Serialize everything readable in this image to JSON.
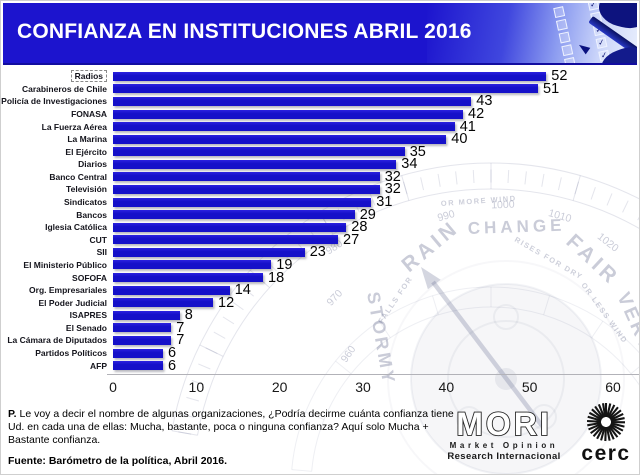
{
  "header": {
    "title": "CONFIANZA EN INSTITUCIONES ABRIL 2016",
    "image": "survey-checklist-with-pen"
  },
  "chart_data": {
    "type": "bar",
    "orientation": "horizontal",
    "title": "CONFIANZA EN INSTITUCIONES ABRIL 2016",
    "categories": [
      "Radios",
      "Carabineros de Chile",
      "Policía de Investigaciones",
      "FONASA",
      "La Fuerza Aérea",
      "La Marina",
      "El Ejército",
      "Diarios",
      "Banco Central",
      "Televisión",
      "Sindicatos",
      "Bancos",
      "Iglesia Católica",
      "CUT",
      "SII",
      "El Ministerio Público",
      "SOFOFA",
      "Org. Empresariales",
      "El Poder Judicial",
      "ISAPRES",
      "El Senado",
      "La Cámara de Diputados",
      "Partidos Políticos",
      "AFP"
    ],
    "values": [
      52,
      51,
      43,
      42,
      41,
      40,
      35,
      34,
      32,
      32,
      31,
      29,
      28,
      27,
      23,
      19,
      18,
      14,
      12,
      8,
      7,
      7,
      6,
      6
    ],
    "xlim": [
      0,
      60
    ],
    "x_ticks": [
      0,
      10,
      20,
      30,
      40,
      50,
      60
    ],
    "bar_color": "#1510c9",
    "selected_index": 0,
    "grid": false,
    "legend": false,
    "watermark": {
      "dial_words": [
        "STORMY",
        "RAIN",
        "CHANGE",
        "FAIR",
        "VERY"
      ],
      "dial_numbers": [
        "960",
        "970",
        "980",
        "990",
        "1000",
        "1010",
        "1020"
      ],
      "dial_phrases": [
        "OR MORE WIND",
        "RISES FOR DRY",
        "OR LESS WIND",
        "FALLS FOR"
      ]
    }
  },
  "footnote": {
    "prefix": "P.",
    "question": "Le voy a decir el nombre de algunas organizaciones, ¿Podría decirme cuánta confianza tiene Ud. en cada una de ellas: Mucha, bastante, poca o ninguna confianza? Aquí solo Mucha + Bastante confianza.",
    "source": "Fuente: Barómetro de la política, Abril 2016."
  },
  "logos": {
    "mori": {
      "name": "MORI",
      "line1": "Market Opinion",
      "line2": "Research Internacional"
    },
    "cerc": {
      "name": "cerc"
    }
  }
}
